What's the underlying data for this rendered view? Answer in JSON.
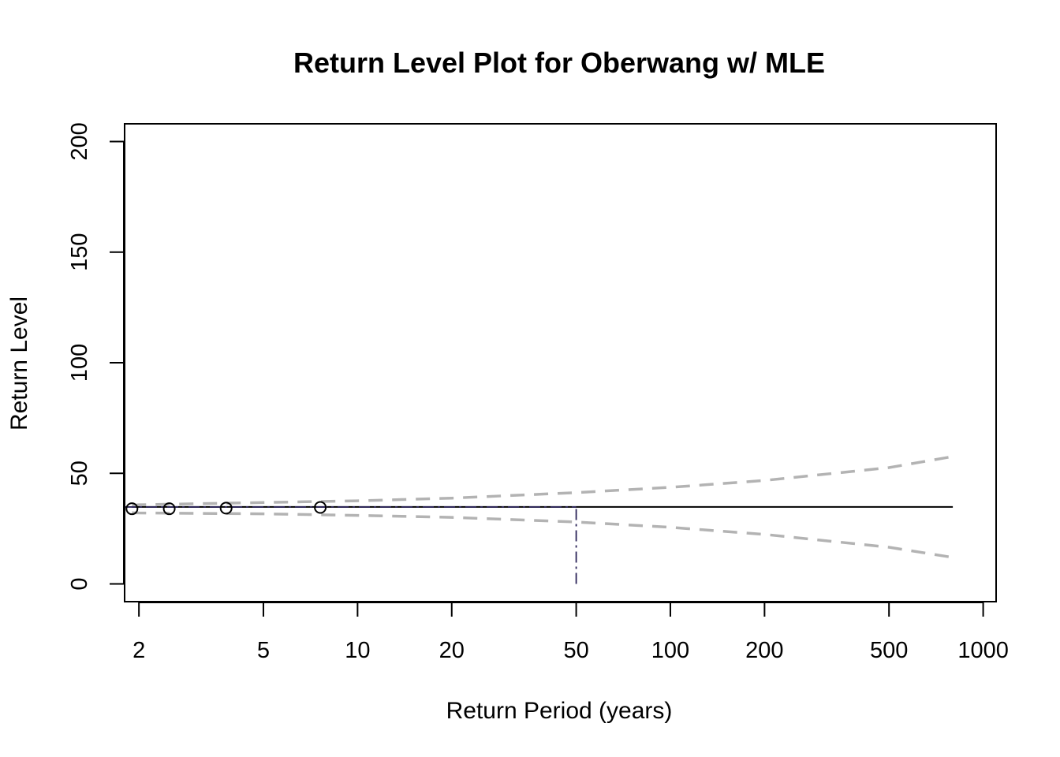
{
  "chart_data": {
    "type": "line",
    "title": "Return Level Plot for Oberwang w/ MLE",
    "xlabel": "Return Period (years)",
    "ylabel": "Return Level",
    "x_scale": "log",
    "xlim": [
      1.8,
      1100
    ],
    "ylim": [
      -8,
      208
    ],
    "x_ticks": [
      2,
      5,
      10,
      20,
      50,
      100,
      200,
      500,
      1000
    ],
    "y_ticks": [
      0,
      50,
      100,
      150,
      200
    ],
    "series": [
      {
        "role": "estimate",
        "style": "solid",
        "color": "#000000",
        "x": [
          1.9,
          800
        ],
        "y": [
          34.8,
          34.8
        ]
      },
      {
        "role": "upper-ci",
        "style": "dashed",
        "color": "#b3b3b3",
        "x": [
          1.9,
          2,
          5,
          10,
          20,
          50,
          100,
          200,
          500,
          800
        ],
        "y": [
          35.5,
          35.8,
          36.8,
          37.6,
          38.8,
          41.3,
          43.7,
          46.8,
          52.6,
          57.6
        ]
      },
      {
        "role": "lower-ci",
        "style": "dashed",
        "color": "#b3b3b3",
        "x": [
          1.9,
          2,
          5,
          10,
          20,
          50,
          100,
          200,
          500,
          800
        ],
        "y": [
          32.2,
          32.1,
          31.7,
          31.0,
          30.1,
          28.0,
          25.6,
          22.4,
          16.6,
          12.0
        ]
      }
    ],
    "points": {
      "x": [
        1.9,
        2.5,
        3.8,
        7.6
      ],
      "y": [
        34,
        34,
        34.3,
        34.6
      ]
    },
    "reference": {
      "period": 50,
      "level": 34.8,
      "color": "#2b2459",
      "style": "dash-dot"
    }
  }
}
